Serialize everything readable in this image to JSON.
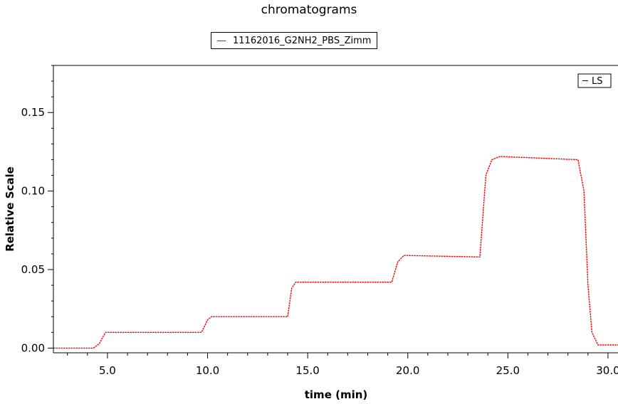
{
  "chart_data": {
    "type": "line",
    "title": "chromatograms",
    "xlabel": "time (min)",
    "ylabel": "Relative Scale",
    "xlim": [
      2.3,
      30.5
    ],
    "ylim": [
      -0.003,
      0.18
    ],
    "x_ticks": [
      5.0,
      10.0,
      15.0,
      20.0,
      25.0,
      30.0
    ],
    "x_tick_labels": [
      "5.0",
      "10.0",
      "15.0",
      "20.0",
      "25.0",
      "30.0"
    ],
    "y_ticks": [
      0.0,
      0.05,
      0.1,
      0.15
    ],
    "y_tick_labels": [
      "0.00",
      "0.05",
      "0.10",
      "0.15"
    ],
    "legend": {
      "position": "top-center",
      "entries": [
        "11162016_G2NH2_PBS_Zimm"
      ]
    },
    "detector_label": "LS",
    "color": "#ff0000",
    "series": [
      {
        "name": "11162016_G2NH2_PBS_Zimm",
        "x": [
          2.3,
          4.3,
          4.6,
          4.9,
          9.7,
          10.0,
          10.2,
          14.0,
          14.2,
          14.4,
          19.2,
          19.5,
          19.8,
          23.6,
          23.9,
          24.2,
          24.6,
          28.5,
          28.8,
          29.0,
          29.2,
          29.5,
          30.5
        ],
        "y": [
          0.0,
          0.0,
          0.003,
          0.01,
          0.01,
          0.018,
          0.02,
          0.02,
          0.038,
          0.042,
          0.042,
          0.055,
          0.059,
          0.058,
          0.11,
          0.12,
          0.122,
          0.12,
          0.1,
          0.04,
          0.01,
          0.002,
          0.002
        ]
      }
    ]
  }
}
